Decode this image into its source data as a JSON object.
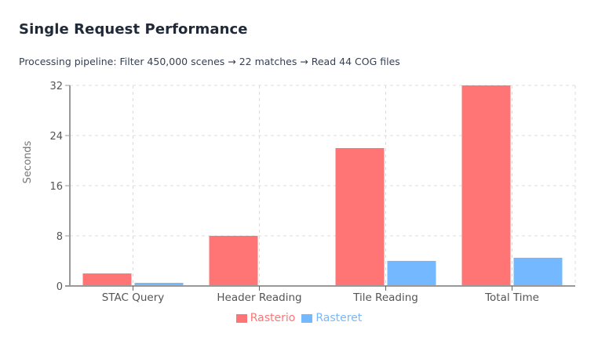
{
  "header": {
    "title": "Single Request Performance",
    "subtitle": "Processing pipeline: Filter 450,000 scenes → 22 matches → Read 44 COG files"
  },
  "colors": {
    "rasterio": "#ff7575",
    "rasteret": "#74b9ff",
    "grid": "#dddddd",
    "axis": "#999999"
  },
  "legend": [
    {
      "label": "Rasterio",
      "color": "#ff7575"
    },
    {
      "label": "Rasteret",
      "color": "#74b9ff"
    }
  ],
  "chart_data": {
    "type": "bar",
    "title": "Single Request Performance",
    "subtitle": "Processing pipeline: Filter 450,000 scenes → 22 matches → Read 44 COG files",
    "categories": [
      "STAC Query",
      "Header Reading",
      "Tile Reading",
      "Total Time"
    ],
    "series": [
      {
        "name": "Rasterio",
        "values": [
          2.0,
          8.0,
          22.0,
          32.0
        ]
      },
      {
        "name": "Rasteret",
        "values": [
          0.5,
          0.0,
          4.0,
          4.5
        ]
      }
    ],
    "xlabel": "",
    "ylabel": "Seconds",
    "ylim": [
      0,
      32
    ],
    "yticks": [
      0,
      8,
      16,
      24,
      32
    ],
    "grid": true,
    "legend_position": "bottom"
  }
}
